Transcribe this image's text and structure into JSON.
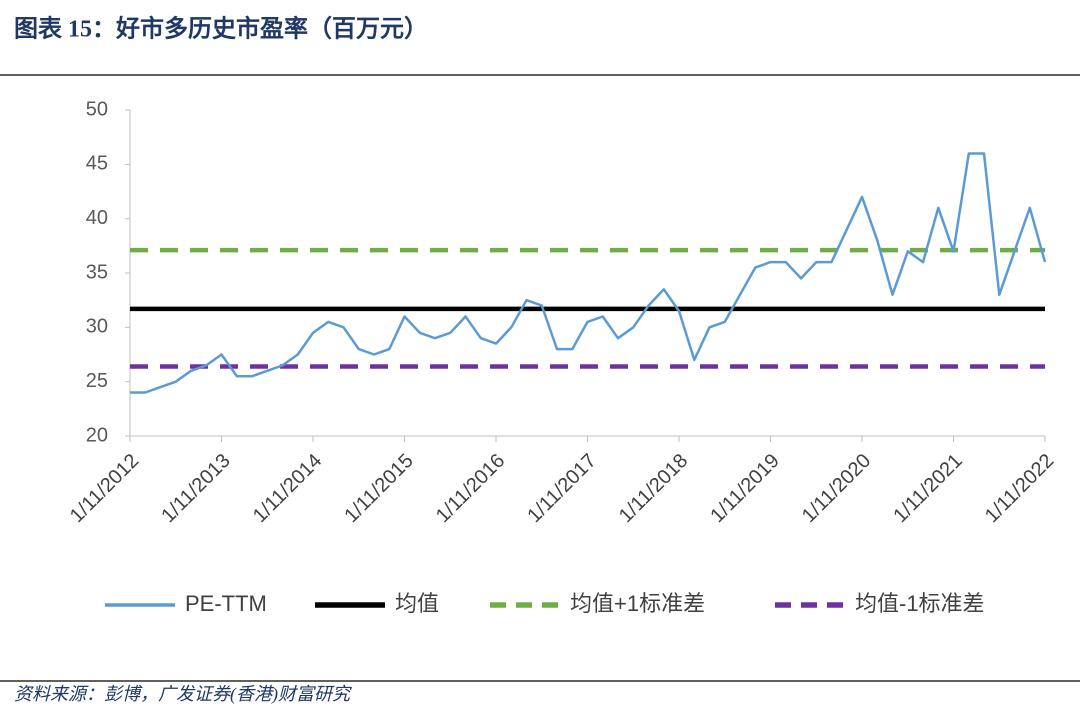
{
  "title": "图表 15：好市多历史市盈率（百万元）",
  "source": "资料来源：彭博，广发证券(香港)财富研究",
  "chart_data": {
    "type": "line",
    "x": [
      "1/11/2012",
      "1/1/2013",
      "1/3/2013",
      "1/5/2013",
      "1/7/2013",
      "1/9/2013",
      "1/11/2013",
      "1/1/2014",
      "1/3/2014",
      "1/5/2014",
      "1/7/2014",
      "1/9/2014",
      "1/11/2014",
      "1/1/2015",
      "1/3/2015",
      "1/5/2015",
      "1/7/2015",
      "1/9/2015",
      "1/11/2015",
      "1/1/2016",
      "1/3/2016",
      "1/5/2016",
      "1/7/2016",
      "1/9/2016",
      "1/11/2016",
      "1/1/2017",
      "1/3/2017",
      "1/5/2017",
      "1/7/2017",
      "1/9/2017",
      "1/11/2017",
      "1/1/2018",
      "1/3/2018",
      "1/5/2018",
      "1/7/2018",
      "1/9/2018",
      "1/11/2018",
      "1/1/2019",
      "1/3/2019",
      "1/5/2019",
      "1/7/2019",
      "1/9/2019",
      "1/11/2019",
      "1/1/2020",
      "1/3/2020",
      "1/5/2020",
      "1/7/2020",
      "1/9/2020",
      "1/11/2020",
      "1/1/2021",
      "1/3/2021",
      "1/5/2021",
      "1/7/2021",
      "1/9/2021",
      "1/11/2021",
      "1/1/2022",
      "1/3/2022",
      "1/5/2022",
      "1/7/2022",
      "1/9/2022",
      "1/11/2022"
    ],
    "series": [
      {
        "name": "PE-TTM",
        "color": "#5b9bd5",
        "values": [
          24,
          24,
          24.5,
          25,
          26,
          26.5,
          27.5,
          25.5,
          25.5,
          26,
          26.5,
          27.5,
          29.5,
          30.5,
          30,
          28,
          27.5,
          28,
          31,
          29.5,
          29,
          29.5,
          31,
          29,
          28.5,
          30,
          32.5,
          32,
          28,
          28,
          30.5,
          31,
          29,
          30,
          32,
          33.5,
          31.5,
          27,
          30,
          30.5,
          33,
          35.5,
          36,
          36,
          34.5,
          36,
          36,
          39,
          42,
          38,
          33,
          37,
          36,
          41,
          37,
          46,
          46,
          33,
          37,
          41,
          36
        ]
      }
    ],
    "hlines": [
      {
        "name": "均值",
        "value": 31.7,
        "color": "#000000",
        "style": "solid"
      },
      {
        "name": "均值+1标准差",
        "value": 37.1,
        "color": "#70ad47",
        "style": "dashed"
      },
      {
        "name": "均值-1标准差",
        "value": 26.4,
        "color": "#7030a0",
        "style": "dashed"
      }
    ],
    "xlim": [
      "1/11/2012",
      "1/11/2022"
    ],
    "xticks": [
      "1/11/2012",
      "1/11/2013",
      "1/11/2014",
      "1/11/2015",
      "1/11/2016",
      "1/11/2017",
      "1/11/2018",
      "1/11/2019",
      "1/11/2020",
      "1/11/2021",
      "1/11/2022"
    ],
    "ylim": [
      20,
      50
    ],
    "yticks": [
      20,
      25,
      30,
      35,
      40,
      45,
      50
    ],
    "grid": false,
    "legend": "bottom"
  }
}
